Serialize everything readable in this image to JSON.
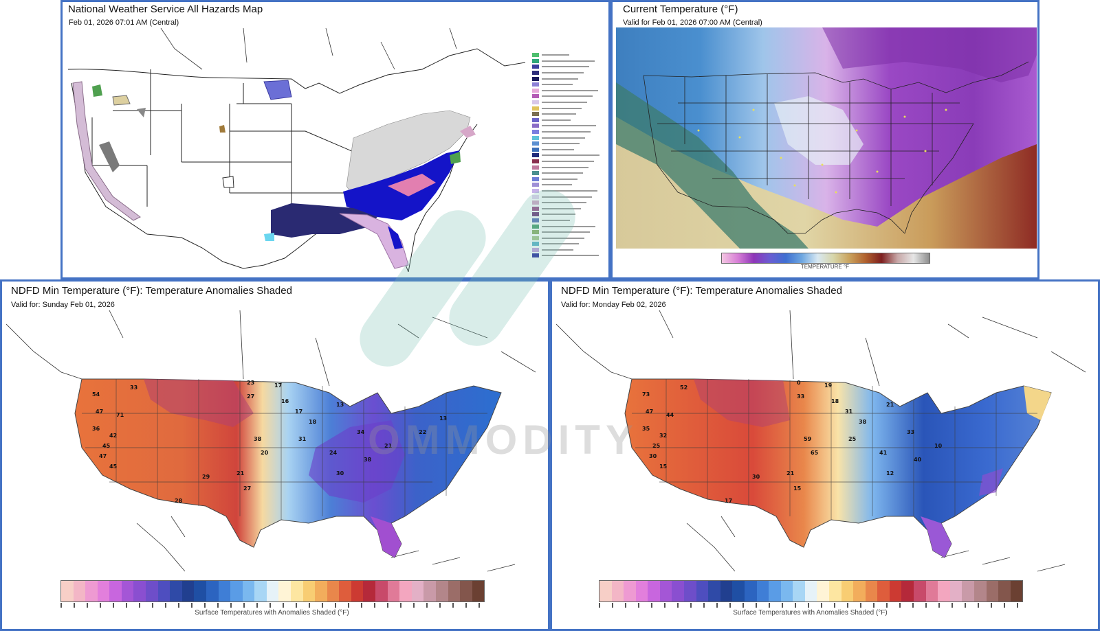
{
  "panels": {
    "hazards": {
      "title": "National Weather Service All Hazards Map",
      "subtitle": "Feb 01, 2026 07:01 AM (Central)",
      "legend_colors": [
        "#4fbf6f",
        "#2fa87a",
        "#3a3f9e",
        "#2d2d7a",
        "#1a1a5c",
        "#8c7fd6",
        "#e6a7d8",
        "#b45bb5",
        "#d8c7e8",
        "#e0c35c",
        "#7a6e52",
        "#6a62c9",
        "#8a6cc6",
        "#7b7fe0",
        "#61c3d9",
        "#5b8fd1",
        "#3c6fb8",
        "#1f2a7a",
        "#8a2f4f",
        "#c07a9e",
        "#4a8f8f",
        "#6e7cd6",
        "#9e8fd6",
        "#c6b3e8",
        "#e4d3f0",
        "#d6a7c8",
        "#9c4e8a",
        "#6f3a7a",
        "#5a6fb8",
        "#4a9f6f",
        "#8fb06a",
        "#a9c78f",
        "#5fb3c9",
        "#c6a0e0",
        "#2a2a9e"
      ]
    },
    "current": {
      "title": "Current Temperature (°F)",
      "subtitle": "Valid for Feb 01, 2026 07:00 AM (Central)",
      "colorbar_caption": "TEMPERATURE °F"
    },
    "min1": {
      "title": "NDFD Min Temperature (°F): Temperature Anomalies Shaded",
      "subtitle": "Valid for: Sunday Feb 01, 2026",
      "colorbar_caption": "Surface Temperatures with Anomalies Shaded (°F)"
    },
    "min2": {
      "title": "NDFD Min Temperature (°F): Temperature Anomalies Shaded",
      "subtitle": "Valid for: Monday Feb 02, 2026",
      "colorbar_caption": "Surface Temperatures with Anomalies Shaded (°F)"
    }
  },
  "anomaly_colorbar_colors": [
    "#f7cfc7",
    "#f3b6c6",
    "#ee9ad2",
    "#e27fdc",
    "#c866de",
    "#a456d6",
    "#8a4fd0",
    "#6e4ec9",
    "#4e4ebf",
    "#2f4aa7",
    "#213f8f",
    "#1f4fa4",
    "#2c64c0",
    "#3f7ed6",
    "#5a9ce6",
    "#7ab8ef",
    "#a8d6f5",
    "#e6f2f8",
    "#fff4d6",
    "#fde6a1",
    "#f8cd73",
    "#f2ad5c",
    "#e9874b",
    "#de5d3c",
    "#cc3a32",
    "#b5293a",
    "#c84a6a",
    "#e07a98",
    "#f3a6bf",
    "#e3b0c6",
    "#c99aa8",
    "#b3868a",
    "#9b6d68",
    "#83564c",
    "#6b4032"
  ],
  "labels_day1": [
    "33",
    "54",
    "23",
    "17",
    "27",
    "47",
    "71",
    "45",
    "36",
    "42",
    "47",
    "45",
    "29",
    "21",
    "27",
    "28",
    "16",
    "17",
    "18",
    "13",
    "38",
    "20",
    "31",
    "24",
    "34",
    "30",
    "38",
    "21",
    "22",
    "13"
  ],
  "labels_day2": [
    "52",
    "73",
    "0",
    "19",
    "33",
    "47",
    "44",
    "25",
    "35",
    "32",
    "30",
    "15",
    "30",
    "21",
    "15",
    "17",
    "18",
    "31",
    "38",
    "21",
    "59",
    "65",
    "25",
    "41",
    "33",
    "12",
    "40",
    "10"
  ]
}
